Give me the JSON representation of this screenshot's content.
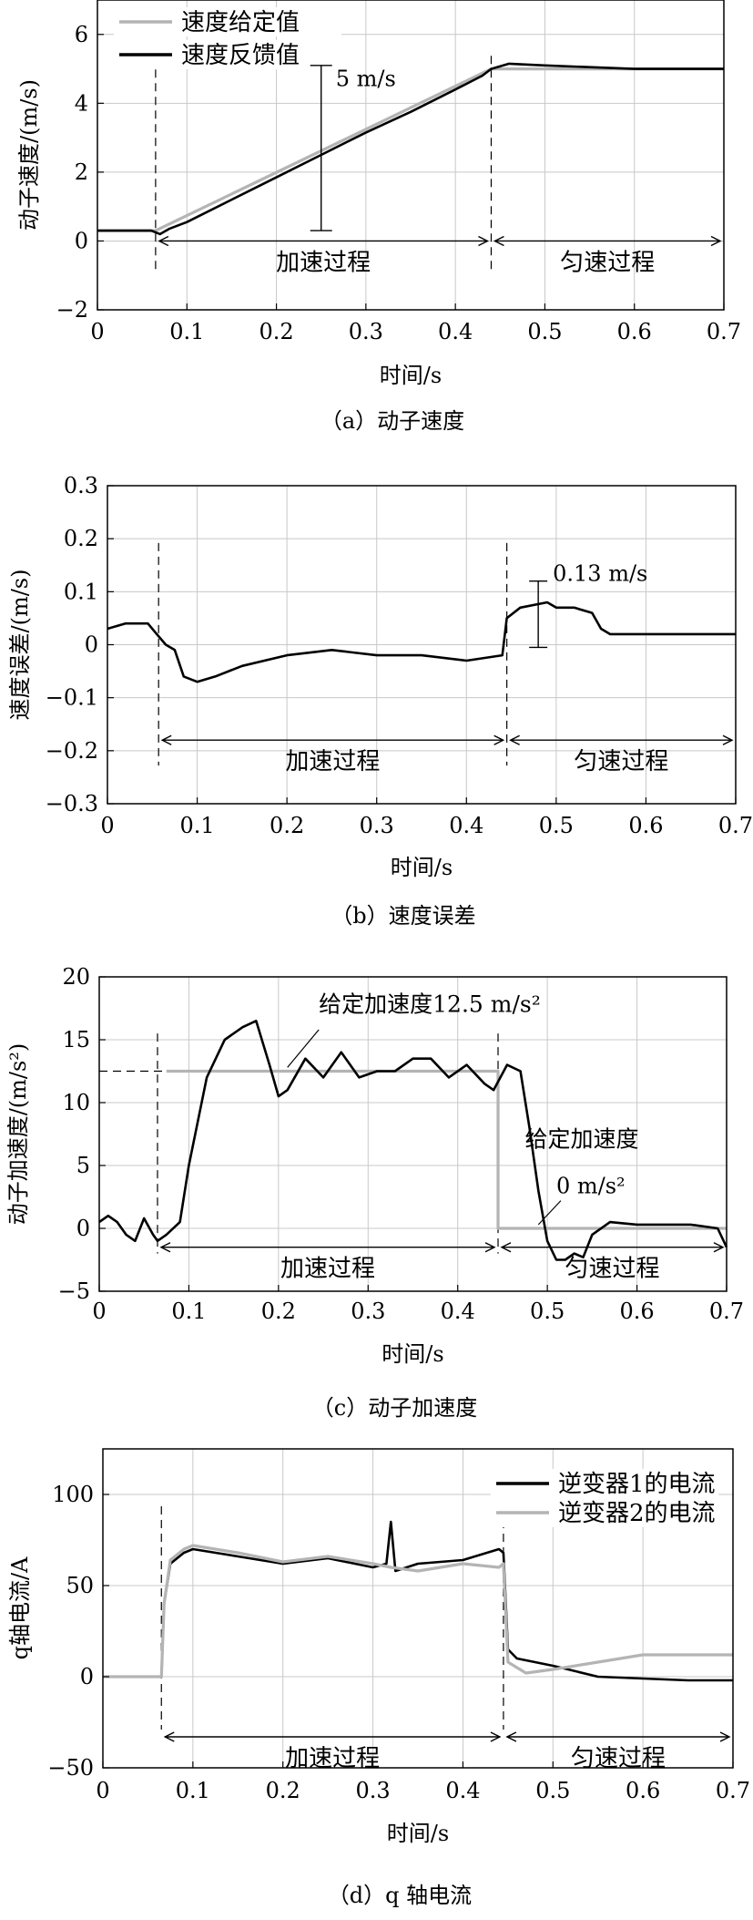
{
  "chart_data": [
    {
      "type": "line",
      "caption": "（a）动子速度",
      "xlabel": "时间/s",
      "ylabel": "动子速度/(m/s)",
      "xlim": [
        0,
        0.7
      ],
      "ylim": [
        -2,
        7
      ],
      "xticks": [
        0,
        0.1,
        0.2,
        0.3,
        0.4,
        0.5,
        0.6,
        0.7
      ],
      "yticks": [
        -2,
        0,
        2,
        4,
        6
      ],
      "ytick_labels": [
        "−2",
        "0",
        "2",
        "4",
        "6"
      ],
      "grid": true,
      "legend": {
        "position": "top-left",
        "entries": [
          "速度给定值",
          "速度反馈值"
        ]
      },
      "series": [
        {
          "name": "速度给定值",
          "color": "#b4b4b4",
          "x": [
            0,
            0.065,
            0.44,
            0.7
          ],
          "y": [
            0.3,
            0.3,
            5.0,
            5.0
          ]
        },
        {
          "name": "速度反馈值",
          "color": "#000000",
          "x": [
            0,
            0.06,
            0.07,
            0.08,
            0.1,
            0.15,
            0.2,
            0.25,
            0.3,
            0.35,
            0.4,
            0.43,
            0.44,
            0.46,
            0.5,
            0.55,
            0.6,
            0.65,
            0.7
          ],
          "y": [
            0.3,
            0.3,
            0.2,
            0.35,
            0.55,
            1.2,
            1.85,
            2.5,
            3.15,
            3.75,
            4.4,
            4.8,
            5.0,
            5.15,
            5.1,
            5.05,
            5.0,
            5.0,
            5.0
          ]
        }
      ],
      "markers_x": [
        0.065,
        0.44
      ],
      "annotations": {
        "delta": "5 m/s",
        "phase1": "加速过程",
        "phase2": "匀速过程"
      }
    },
    {
      "type": "line",
      "caption": "（b）速度误差",
      "xlabel": "时间/s",
      "ylabel": "速度误差/(m/s)",
      "xlim": [
        0,
        0.7
      ],
      "ylim": [
        -0.3,
        0.3
      ],
      "xticks": [
        0,
        0.1,
        0.2,
        0.3,
        0.4,
        0.5,
        0.6,
        0.7
      ],
      "yticks": [
        -0.3,
        -0.2,
        -0.1,
        0,
        0.1,
        0.2,
        0.3
      ],
      "ytick_labels": [
        "−0.3",
        "−0.2",
        "−0.1",
        "0",
        "0.1",
        "0.2",
        "0.3"
      ],
      "grid": true,
      "series": [
        {
          "name": "",
          "color": "#000000",
          "x": [
            0,
            0.02,
            0.045,
            0.055,
            0.065,
            0.075,
            0.085,
            0.1,
            0.12,
            0.15,
            0.2,
            0.25,
            0.3,
            0.35,
            0.4,
            0.44,
            0.445,
            0.46,
            0.49,
            0.5,
            0.52,
            0.54,
            0.55,
            0.56,
            0.6,
            0.65,
            0.7
          ],
          "y": [
            0.03,
            0.04,
            0.04,
            0.02,
            0.0,
            -0.01,
            -0.06,
            -0.07,
            -0.06,
            -0.04,
            -0.02,
            -0.01,
            -0.02,
            -0.02,
            -0.03,
            -0.02,
            0.05,
            0.07,
            0.08,
            0.07,
            0.07,
            0.06,
            0.03,
            0.02,
            0.02,
            0.02,
            0.02
          ]
        }
      ],
      "markers_x": [
        0.057,
        0.445
      ],
      "annotations": {
        "delta": "0.13 m/s",
        "phase1": "加速过程",
        "phase2": "匀速过程"
      }
    },
    {
      "type": "line",
      "caption": "（c）动子加速度",
      "xlabel": "时间/s",
      "ylabel": "动子加速度/(m/s²)",
      "xlim": [
        0,
        0.7
      ],
      "ylim": [
        -5,
        20
      ],
      "xticks": [
        0,
        0.1,
        0.2,
        0.3,
        0.4,
        0.5,
        0.6,
        0.7
      ],
      "yticks": [
        -5,
        0,
        5,
        10,
        15,
        20
      ],
      "ytick_labels": [
        "−5",
        "0",
        "5",
        "10",
        "15",
        "20"
      ],
      "grid": true,
      "series": [
        {
          "name": "给定加速度",
          "color": "#b4b4b4",
          "x": [
            0.075,
            0.445,
            0.445,
            0.7
          ],
          "y": [
            12.5,
            12.5,
            0,
            0
          ]
        },
        {
          "name": "动子加速度",
          "color": "#000000",
          "x": [
            0,
            0.01,
            0.02,
            0.03,
            0.04,
            0.05,
            0.06,
            0.065,
            0.075,
            0.09,
            0.1,
            0.12,
            0.14,
            0.16,
            0.175,
            0.19,
            0.2,
            0.21,
            0.23,
            0.25,
            0.27,
            0.29,
            0.31,
            0.33,
            0.35,
            0.37,
            0.39,
            0.41,
            0.43,
            0.44,
            0.455,
            0.47,
            0.48,
            0.49,
            0.5,
            0.51,
            0.52,
            0.53,
            0.54,
            0.55,
            0.57,
            0.6,
            0.63,
            0.66,
            0.69,
            0.7
          ],
          "y": [
            0.5,
            1.0,
            0.5,
            -0.5,
            -1.0,
            0.8,
            -0.5,
            -1.0,
            -0.5,
            0.5,
            5.0,
            12.0,
            15.0,
            16.0,
            16.5,
            13.0,
            10.5,
            11.0,
            13.5,
            12.0,
            14.0,
            12.0,
            12.5,
            12.5,
            13.5,
            13.5,
            12.0,
            13.0,
            11.5,
            11.0,
            13.0,
            12.5,
            8.0,
            3.0,
            -1.0,
            -2.5,
            -2.5,
            -2.0,
            -2.3,
            -0.5,
            0.5,
            0.3,
            0.3,
            0.3,
            0.0,
            -1.5
          ]
        }
      ],
      "markers_x": [
        0.065,
        0.445
      ],
      "annotations": {
        "setpoint1": "给定加速度12.5 m/s²",
        "setpoint2_line1": "给定加速度",
        "setpoint2_line2": "0 m/s²",
        "phase1": "加速过程",
        "phase2": "匀速过程"
      }
    },
    {
      "type": "line",
      "caption": "（d）q 轴电流",
      "xlabel": "时间/s",
      "ylabel": "q轴电流/A",
      "xlim": [
        0,
        0.7
      ],
      "ylim": [
        -50,
        125
      ],
      "xticks": [
        0,
        0.1,
        0.2,
        0.3,
        0.4,
        0.5,
        0.6,
        0.7
      ],
      "yticks": [
        -50,
        0,
        50,
        100
      ],
      "ytick_labels": [
        "−50",
        "0",
        "50",
        "100"
      ],
      "grid": true,
      "legend": {
        "position": "top-right",
        "entries": [
          "逆变器1的电流",
          "逆变器2的电流"
        ]
      },
      "series": [
        {
          "name": "逆变器1的电流",
          "color": "#000000",
          "x": [
            0,
            0.065,
            0.068,
            0.075,
            0.09,
            0.1,
            0.15,
            0.2,
            0.25,
            0.3,
            0.315,
            0.32,
            0.325,
            0.35,
            0.4,
            0.44,
            0.445,
            0.45,
            0.46,
            0.5,
            0.55,
            0.6,
            0.65,
            0.7
          ],
          "y": [
            0,
            0,
            40,
            62,
            68,
            70,
            66,
            62,
            65,
            60,
            62,
            85,
            58,
            62,
            64,
            70,
            68,
            15,
            10,
            6,
            0,
            -1,
            -2,
            -2
          ]
        },
        {
          "name": "逆变器2的电流",
          "color": "#b4b4b4",
          "x": [
            0,
            0.065,
            0.068,
            0.075,
            0.09,
            0.1,
            0.15,
            0.2,
            0.25,
            0.3,
            0.32,
            0.35,
            0.4,
            0.44,
            0.445,
            0.45,
            0.47,
            0.5,
            0.55,
            0.6,
            0.65,
            0.7
          ],
          "y": [
            0,
            0,
            40,
            64,
            70,
            72,
            68,
            63,
            66,
            62,
            60,
            58,
            62,
            60,
            62,
            8,
            2,
            4,
            8,
            12,
            12,
            12
          ]
        }
      ],
      "markers_x": [
        0.065,
        0.445
      ],
      "annotations": {
        "phase1": "加速过程",
        "phase2": "匀速过程"
      }
    }
  ]
}
